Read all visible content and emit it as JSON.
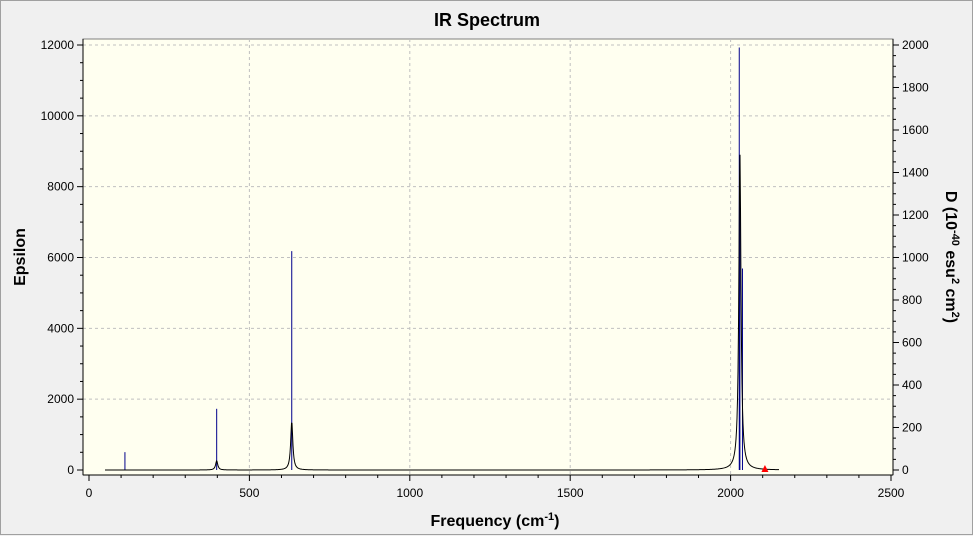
{
  "chart_data": {
    "type": "line",
    "title": "IR Spectrum",
    "xlabel": "Frequency (cm",
    "xlabel_sup": "-1",
    "xlabel_tail": ")",
    "ylabel": "Epsilon",
    "y2label_parts": [
      "D (10",
      "-40",
      " esu",
      "2",
      " cm",
      "2",
      ")"
    ],
    "xlim": [
      0,
      2500
    ],
    "ylim": [
      0,
      12000
    ],
    "y2lim": [
      0,
      2000
    ],
    "xticks": [
      0,
      500,
      1000,
      1500,
      2000,
      2500
    ],
    "yticks": [
      0,
      2000,
      4000,
      6000,
      8000,
      10000,
      12000
    ],
    "y2ticks": [
      0,
      200,
      400,
      600,
      800,
      1000,
      1200,
      1400,
      1600,
      1800,
      2000
    ],
    "grid": true,
    "series": [
      {
        "role": "spectrum",
        "color": "#000000",
        "x": [
          50,
          2150
        ]
      },
      {
        "role": "stick-intensity",
        "color": "#00008b",
        "sticks": [
          {
            "x": 112,
            "d": 84
          },
          {
            "x": 398,
            "d": 288
          },
          {
            "x": 632,
            "d": 1030
          },
          {
            "x": 2027,
            "d": 1988
          },
          {
            "x": 2029,
            "d": 1290
          },
          {
            "x": 2037,
            "d": 948
          }
        ]
      }
    ],
    "peaks": [
      {
        "x": 398,
        "y": 260,
        "fwhm": 8
      },
      {
        "x": 632,
        "y": 1370,
        "fwhm": 8
      },
      {
        "x": 2029,
        "y": 8950,
        "fwhm": 8
      }
    ],
    "marker": {
      "x": 2107,
      "y": 0,
      "color": "#ff0000"
    },
    "colors": {
      "plot_bg": "#fffff0",
      "window_bg": "#f0f0f0",
      "grid": "#c0c0c0"
    }
  }
}
